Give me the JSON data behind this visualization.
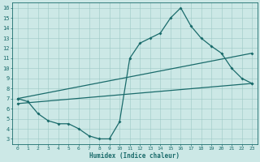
{
  "xlabel": "Humidex (Indice chaleur)",
  "xlim": [
    -0.5,
    23.5
  ],
  "ylim": [
    2.5,
    16.5
  ],
  "xticks": [
    0,
    1,
    2,
    3,
    4,
    5,
    6,
    7,
    8,
    9,
    10,
    11,
    12,
    13,
    14,
    15,
    16,
    17,
    18,
    19,
    20,
    21,
    22,
    23
  ],
  "yticks": [
    3,
    4,
    5,
    6,
    7,
    8,
    9,
    10,
    11,
    12,
    13,
    14,
    15,
    16
  ],
  "bg_color": "#cce8e6",
  "grid_color": "#9dc8c5",
  "line_color": "#1a6b6b",
  "line1_x": [
    0,
    1,
    2,
    3,
    4,
    5,
    6,
    7,
    8,
    9,
    10,
    11,
    12,
    13,
    14,
    15,
    16,
    17,
    18,
    19,
    20,
    21,
    22,
    23
  ],
  "line1_y": [
    7.0,
    6.7,
    5.5,
    4.8,
    4.5,
    4.5,
    4.0,
    3.3,
    3.0,
    3.0,
    4.7,
    11.0,
    12.5,
    13.0,
    13.5,
    15.0,
    16.0,
    14.2,
    13.0,
    12.2,
    11.5,
    10.0,
    9.0,
    8.5
  ],
  "line2_x": [
    0,
    23
  ],
  "line2_y": [
    7.0,
    11.5
  ],
  "line3_x": [
    0,
    23
  ],
  "line3_y": [
    6.5,
    8.5
  ],
  "marker_size": 2,
  "linewidth": 0.9
}
